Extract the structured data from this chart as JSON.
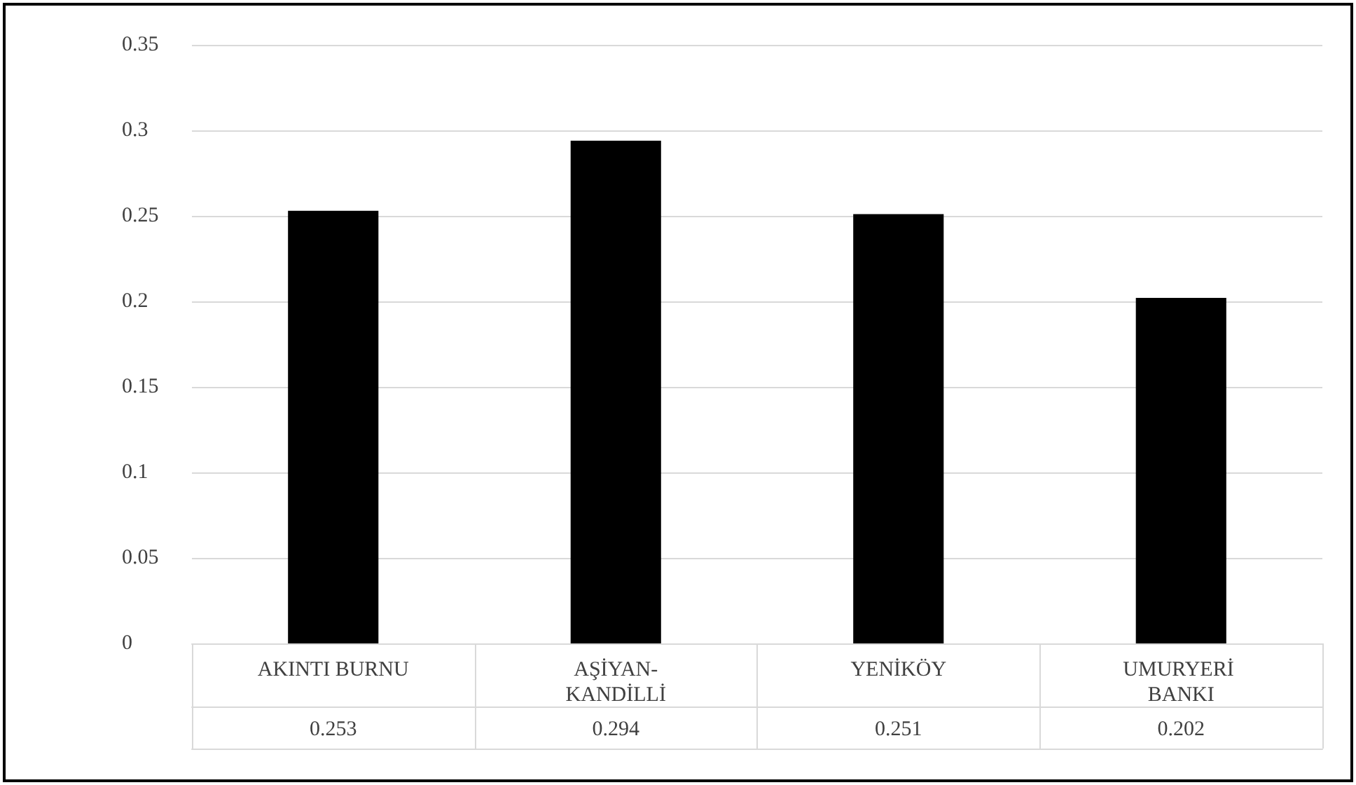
{
  "chart_data": {
    "type": "bar",
    "categories": [
      "AKINTI BURNU",
      "AŞİYAN-KANDİLLİ",
      "YENİKÖY",
      "UMURYERİ BANKI"
    ],
    "values": [
      0.253,
      0.294,
      0.251,
      0.202
    ],
    "color": "#000000",
    "ylim": [
      0,
      0.35
    ],
    "yticks": [
      0,
      0.05,
      0.1,
      0.15,
      0.2,
      0.25,
      0.3,
      0.35
    ],
    "grid": "y",
    "data_labels": true
  }
}
